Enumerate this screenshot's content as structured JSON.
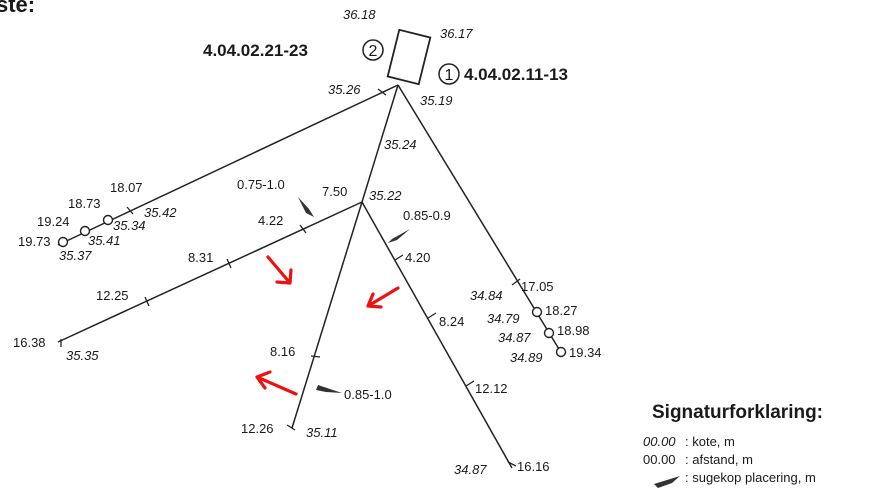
{
  "partial_heading": "ste:",
  "buildings": [
    {
      "name": "4.04.02.21-23",
      "number": "2"
    },
    {
      "name": "4.04.02.11-13",
      "number": "1"
    }
  ],
  "kote_values": [
    "36.18",
    "36.17",
    "35.26",
    "35.19",
    "35.24",
    "35.22",
    "35.42",
    "35.34",
    "35.41",
    "35.37",
    "35.35",
    "35.11",
    "34.84",
    "34.79",
    "34.87",
    "34.89",
    "34.87"
  ],
  "afstand_values": [
    "7.50",
    "4.22",
    "8.31",
    "12.25",
    "16.38",
    "18.07",
    "18.73",
    "19.24",
    "19.73",
    "4.20",
    "8.24",
    "12.12",
    "16.16",
    "8.16",
    "12.26",
    "17.05",
    "18.27",
    "18.98",
    "19.34"
  ],
  "sugekop_values": [
    "0.75-1.0",
    "0.85-0.9",
    "0.85-1.0"
  ],
  "legend": {
    "title": "Signaturforklaring:",
    "kote_sample": "00.00",
    "kote_desc": ": kote, m",
    "afstand_sample": "00.00",
    "afstand_desc": ": afstand, m",
    "sugekop_desc": ": sugekop placering, m"
  }
}
